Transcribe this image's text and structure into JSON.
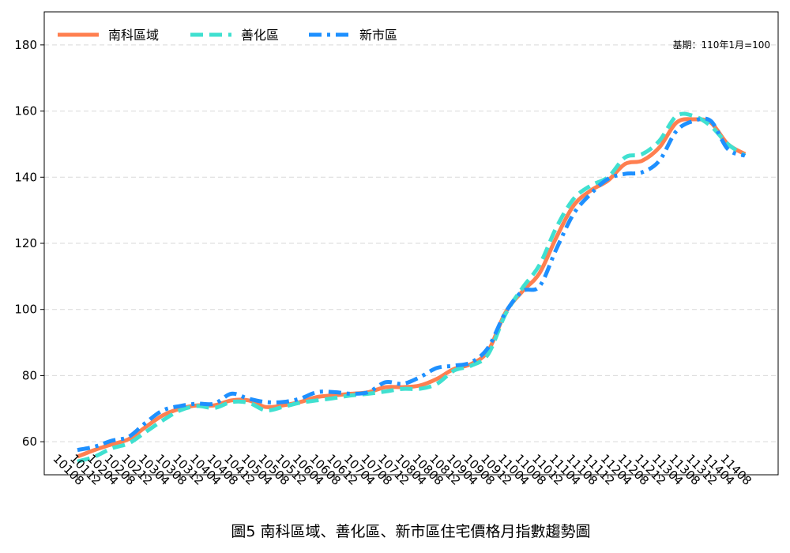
{
  "chart_data": {
    "type": "line",
    "title": "",
    "caption": "圖5 南科區域、善化區、新市區住宅價格月指數趨勢圖",
    "note": "基期：110年1月=100",
    "xlabel": "",
    "ylabel": "",
    "ylim": [
      50,
      190
    ],
    "yticks": [
      60,
      80,
      100,
      120,
      140,
      160,
      180
    ],
    "grid": "y-dashed",
    "legend_position": "top-left",
    "x": [
      "10108",
      "10112",
      "10204",
      "10208",
      "10212",
      "10304",
      "10308",
      "10312",
      "10404",
      "10408",
      "10412",
      "10504",
      "10508",
      "10512",
      "10604",
      "10608",
      "10612",
      "10704",
      "10708",
      "10712",
      "10804",
      "10808",
      "10812",
      "10904",
      "10908",
      "10912",
      "11004",
      "11008",
      "11012",
      "11104",
      "11108",
      "11112",
      "11204",
      "11208",
      "11212",
      "11304",
      "11308",
      "11312",
      "11404",
      "11408"
    ],
    "series": [
      {
        "name": "南科區域",
        "color": "#FF7F50",
        "dash": "solid",
        "values": [
          55.5,
          57.5,
          59.2,
          60.8,
          64.5,
          68,
          70,
          71,
          71,
          72.5,
          72.5,
          70.5,
          71,
          72,
          73.5,
          74,
          74.5,
          75,
          76.5,
          76.5,
          77,
          79,
          82,
          83.5,
          87.5,
          99,
          105.5,
          111,
          122,
          131.5,
          136,
          139,
          144,
          145,
          149,
          156.5,
          157.5,
          156.5,
          150,
          147
        ]
      },
      {
        "name": "善化區",
        "color": "#40E0D0",
        "dash": "dashed",
        "values": [
          54,
          55.5,
          58,
          59.5,
          63,
          66.5,
          69.5,
          70.8,
          70.2,
          72,
          71.8,
          69.5,
          70.5,
          71.8,
          72.5,
          73.2,
          74,
          74.5,
          75.2,
          76,
          76,
          77.5,
          81.5,
          83,
          86.5,
          98.5,
          106.5,
          113.5,
          125,
          133.5,
          137.5,
          140,
          146,
          147,
          151,
          158.5,
          158.5,
          155.5,
          150,
          146.5
        ]
      },
      {
        "name": "新市區",
        "color": "#1E90FF",
        "dash": "dashdot",
        "values": [
          57.5,
          58.5,
          60.3,
          61.5,
          65.8,
          69.5,
          70.8,
          71.5,
          71.5,
          74.5,
          73,
          72,
          72,
          73,
          75,
          75,
          74.5,
          75,
          78,
          77.5,
          79.5,
          82.3,
          83,
          84,
          88.5,
          99,
          105.5,
          107,
          118.5,
          129,
          135,
          139.5,
          141,
          141.5,
          145,
          154,
          157,
          157,
          148.5,
          146.5
        ]
      }
    ]
  }
}
